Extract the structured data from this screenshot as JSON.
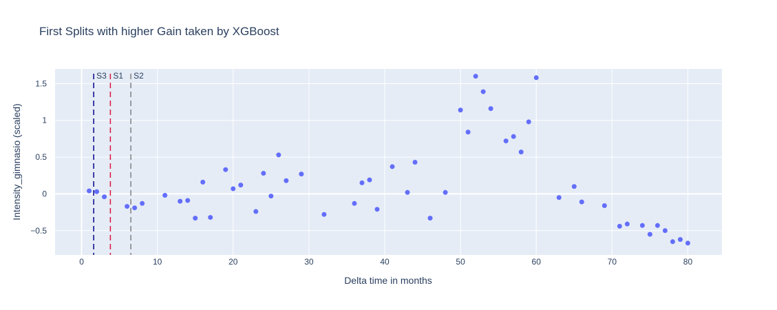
{
  "chart_data": {
    "type": "scatter",
    "title": "First Splits with higher Gain taken by XGBoost",
    "xlabel": "Delta time in months",
    "ylabel": "Intensity_gimnasio (scaled)",
    "xlim": [
      -3.5,
      84.5
    ],
    "ylim": [
      -0.83,
      1.7
    ],
    "x_ticks": [
      0,
      10,
      20,
      30,
      40,
      50,
      60,
      70,
      80
    ],
    "y_ticks": [
      -0.5,
      0,
      0.5,
      1,
      1.5
    ],
    "y_tick_labels": [
      "−0.5",
      "0",
      "0.5",
      "1",
      "1.5"
    ],
    "grid": true,
    "marker_color": "#636efa",
    "plot_bgcolor": "#e5ecf6",
    "vlines": [
      {
        "label": "S3",
        "x": 1.6,
        "color": "#00008b"
      },
      {
        "label": "S1",
        "x": 3.8,
        "color": "#dc143c"
      },
      {
        "label": "S2",
        "x": 6.5,
        "color": "#808080"
      }
    ],
    "points": [
      {
        "x": 1,
        "y": 0.04
      },
      {
        "x": 2,
        "y": 0.03
      },
      {
        "x": 3,
        "y": -0.04
      },
      {
        "x": 6,
        "y": -0.17
      },
      {
        "x": 7,
        "y": -0.19
      },
      {
        "x": 8,
        "y": -0.13
      },
      {
        "x": 11,
        "y": -0.02
      },
      {
        "x": 13,
        "y": -0.1
      },
      {
        "x": 14,
        "y": -0.09
      },
      {
        "x": 15,
        "y": -0.33
      },
      {
        "x": 16,
        "y": 0.16
      },
      {
        "x": 17,
        "y": -0.32
      },
      {
        "x": 19,
        "y": 0.33
      },
      {
        "x": 20,
        "y": 0.07
      },
      {
        "x": 21,
        "y": 0.12
      },
      {
        "x": 23,
        "y": -0.24
      },
      {
        "x": 24,
        "y": 0.28
      },
      {
        "x": 25,
        "y": -0.03
      },
      {
        "x": 26,
        "y": 0.53
      },
      {
        "x": 27,
        "y": 0.18
      },
      {
        "x": 29,
        "y": 0.27
      },
      {
        "x": 32,
        "y": -0.28
      },
      {
        "x": 36,
        "y": -0.13
      },
      {
        "x": 37,
        "y": 0.15
      },
      {
        "x": 38,
        "y": 0.19
      },
      {
        "x": 39,
        "y": -0.21
      },
      {
        "x": 41,
        "y": 0.37
      },
      {
        "x": 43,
        "y": 0.02
      },
      {
        "x": 44,
        "y": 0.43
      },
      {
        "x": 46,
        "y": -0.33
      },
      {
        "x": 48,
        "y": 0.02
      },
      {
        "x": 50,
        "y": 1.14
      },
      {
        "x": 51,
        "y": 0.84
      },
      {
        "x": 52,
        "y": 1.6
      },
      {
        "x": 53,
        "y": 1.39
      },
      {
        "x": 54,
        "y": 1.16
      },
      {
        "x": 56,
        "y": 0.72
      },
      {
        "x": 57,
        "y": 0.78
      },
      {
        "x": 58,
        "y": 0.57
      },
      {
        "x": 59,
        "y": 0.98
      },
      {
        "x": 60,
        "y": 1.58
      },
      {
        "x": 63,
        "y": -0.05
      },
      {
        "x": 65,
        "y": 0.1
      },
      {
        "x": 66,
        "y": -0.11
      },
      {
        "x": 69,
        "y": -0.16
      },
      {
        "x": 71,
        "y": -0.44
      },
      {
        "x": 72,
        "y": -0.41
      },
      {
        "x": 74,
        "y": -0.43
      },
      {
        "x": 75,
        "y": -0.55
      },
      {
        "x": 76,
        "y": -0.43
      },
      {
        "x": 77,
        "y": -0.5
      },
      {
        "x": 78,
        "y": -0.65
      },
      {
        "x": 79,
        "y": -0.62
      },
      {
        "x": 80,
        "y": -0.67
      }
    ]
  }
}
